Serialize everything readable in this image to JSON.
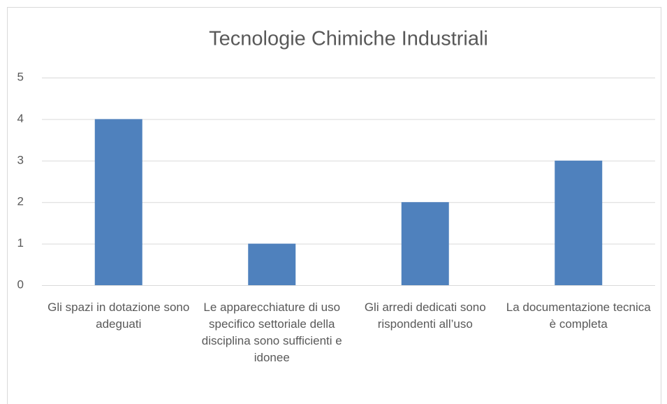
{
  "chart_data": {
    "type": "bar",
    "title": "Tecnologie Chimiche Industriali",
    "categories": [
      "Gli spazi in dotazione sono adeguati",
      "Le apparecchiature di uso specifico settoriale della disciplina sono sufficienti e idonee",
      "Gli arredi dedicati sono rispondenti all’uso",
      "La documentazione tecnica è completa"
    ],
    "values": [
      4,
      1,
      2,
      3
    ],
    "color": "#4f81bd",
    "ylim": [
      0,
      5
    ],
    "yticks": [
      0,
      1,
      2,
      3,
      4,
      5
    ],
    "grid": true
  }
}
